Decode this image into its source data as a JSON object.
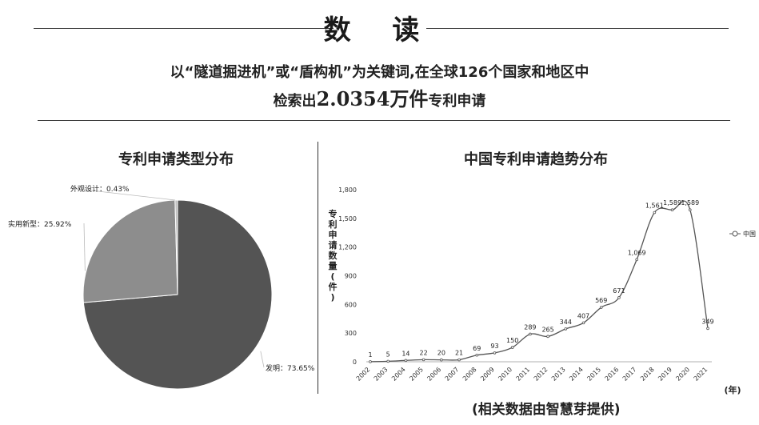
{
  "page": {
    "title": "数 读",
    "intro_line1": "以“隧道掘进机”或“盾构机”为关键词,在全球126个国家和地区中",
    "intro_line2_prefix": "检索出",
    "intro_line2_highlight": "2.0354万件",
    "intro_line2_suffix": "专利申请",
    "credit": "(相关数据由智慧芽提供)"
  },
  "chart_data": [
    {
      "type": "pie",
      "title": "专利申请类型分布",
      "slices": [
        {
          "label": "发明",
          "value": 73.65,
          "text": "发明：73.65%",
          "color": "#545454"
        },
        {
          "label": "实用新型",
          "value": 25.92,
          "text": "实用新型：25.92%",
          "color": "#8d8d8d"
        },
        {
          "label": "外观设计",
          "value": 0.43,
          "text": "外观设计：0.43%",
          "color": "#bdbdbd"
        }
      ]
    },
    {
      "type": "line",
      "title": "中国专利申请趋势分布",
      "ylabel": "专利申请数量(件)",
      "xlabel": "(年)",
      "ylim": [
        0,
        1800
      ],
      "yticks": [
        "0",
        "300",
        "600",
        "900",
        "1,200",
        "1,500",
        "1,800"
      ],
      "x": [
        "2002",
        "2003",
        "2004",
        "2005",
        "2006",
        "2007",
        "2008",
        "2009",
        "2010",
        "2011",
        "2012",
        "2013",
        "2014",
        "2015",
        "2016",
        "2017",
        "2018",
        "2019",
        "2020",
        "2021"
      ],
      "series": [
        {
          "name": "中国",
          "values": [
            1,
            5,
            14,
            22,
            20,
            21,
            69,
            93,
            150,
            289,
            265,
            344,
            407,
            569,
            671,
            1069,
            1561,
            1589,
            1589,
            349
          ],
          "labels": [
            "1",
            "5",
            "14",
            "22",
            "20",
            "21",
            "69",
            "93",
            "150",
            "289",
            "265",
            "344",
            "407",
            "569",
            "671",
            "1,069",
            "1,561",
            "1,589",
            "1,589",
            "349"
          ]
        }
      ],
      "legend_position": "right"
    }
  ]
}
